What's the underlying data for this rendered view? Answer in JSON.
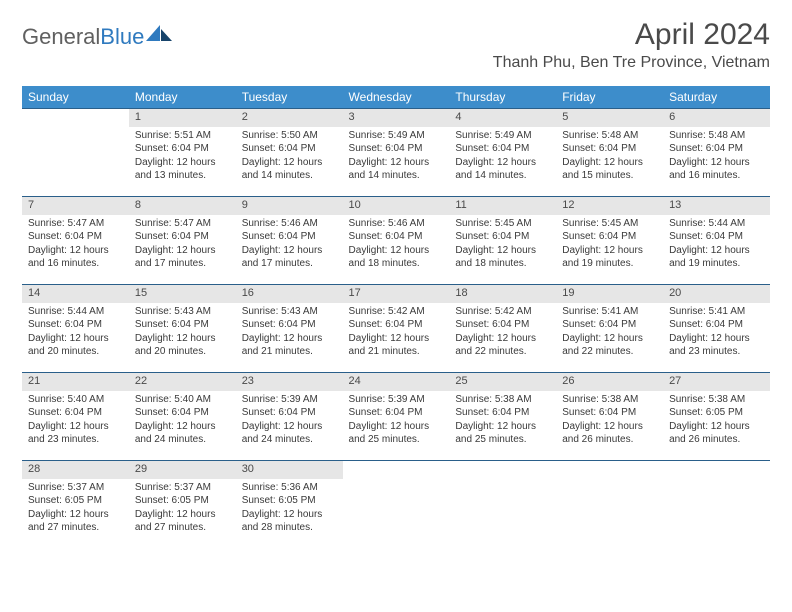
{
  "logo": {
    "text1": "General",
    "text2": "Blue"
  },
  "title": "April 2024",
  "location": "Thanh Phu, Ben Tre Province, Vietnam",
  "colors": {
    "header_bg": "#3d8dcb",
    "header_text": "#ffffff",
    "daynum_bg": "#e6e6e6",
    "row_divider": "#2a5f8a",
    "body_text": "#3a3a3a",
    "title_text": "#4a4a4a",
    "logo_gray": "#606060",
    "logo_blue": "#2f7abf"
  },
  "typography": {
    "title_fontsize": 30,
    "location_fontsize": 16,
    "dayheader_fontsize": 12,
    "daynum_fontsize": 11,
    "cell_fontsize": 10
  },
  "day_headers": [
    "Sunday",
    "Monday",
    "Tuesday",
    "Wednesday",
    "Thursday",
    "Friday",
    "Saturday"
  ],
  "weeks": [
    [
      null,
      {
        "n": "1",
        "sr": "Sunrise: 5:51 AM",
        "ss": "Sunset: 6:04 PM",
        "d1": "Daylight: 12 hours",
        "d2": "and 13 minutes."
      },
      {
        "n": "2",
        "sr": "Sunrise: 5:50 AM",
        "ss": "Sunset: 6:04 PM",
        "d1": "Daylight: 12 hours",
        "d2": "and 14 minutes."
      },
      {
        "n": "3",
        "sr": "Sunrise: 5:49 AM",
        "ss": "Sunset: 6:04 PM",
        "d1": "Daylight: 12 hours",
        "d2": "and 14 minutes."
      },
      {
        "n": "4",
        "sr": "Sunrise: 5:49 AM",
        "ss": "Sunset: 6:04 PM",
        "d1": "Daylight: 12 hours",
        "d2": "and 14 minutes."
      },
      {
        "n": "5",
        "sr": "Sunrise: 5:48 AM",
        "ss": "Sunset: 6:04 PM",
        "d1": "Daylight: 12 hours",
        "d2": "and 15 minutes."
      },
      {
        "n": "6",
        "sr": "Sunrise: 5:48 AM",
        "ss": "Sunset: 6:04 PM",
        "d1": "Daylight: 12 hours",
        "d2": "and 16 minutes."
      }
    ],
    [
      {
        "n": "7",
        "sr": "Sunrise: 5:47 AM",
        "ss": "Sunset: 6:04 PM",
        "d1": "Daylight: 12 hours",
        "d2": "and 16 minutes."
      },
      {
        "n": "8",
        "sr": "Sunrise: 5:47 AM",
        "ss": "Sunset: 6:04 PM",
        "d1": "Daylight: 12 hours",
        "d2": "and 17 minutes."
      },
      {
        "n": "9",
        "sr": "Sunrise: 5:46 AM",
        "ss": "Sunset: 6:04 PM",
        "d1": "Daylight: 12 hours",
        "d2": "and 17 minutes."
      },
      {
        "n": "10",
        "sr": "Sunrise: 5:46 AM",
        "ss": "Sunset: 6:04 PM",
        "d1": "Daylight: 12 hours",
        "d2": "and 18 minutes."
      },
      {
        "n": "11",
        "sr": "Sunrise: 5:45 AM",
        "ss": "Sunset: 6:04 PM",
        "d1": "Daylight: 12 hours",
        "d2": "and 18 minutes."
      },
      {
        "n": "12",
        "sr": "Sunrise: 5:45 AM",
        "ss": "Sunset: 6:04 PM",
        "d1": "Daylight: 12 hours",
        "d2": "and 19 minutes."
      },
      {
        "n": "13",
        "sr": "Sunrise: 5:44 AM",
        "ss": "Sunset: 6:04 PM",
        "d1": "Daylight: 12 hours",
        "d2": "and 19 minutes."
      }
    ],
    [
      {
        "n": "14",
        "sr": "Sunrise: 5:44 AM",
        "ss": "Sunset: 6:04 PM",
        "d1": "Daylight: 12 hours",
        "d2": "and 20 minutes."
      },
      {
        "n": "15",
        "sr": "Sunrise: 5:43 AM",
        "ss": "Sunset: 6:04 PM",
        "d1": "Daylight: 12 hours",
        "d2": "and 20 minutes."
      },
      {
        "n": "16",
        "sr": "Sunrise: 5:43 AM",
        "ss": "Sunset: 6:04 PM",
        "d1": "Daylight: 12 hours",
        "d2": "and 21 minutes."
      },
      {
        "n": "17",
        "sr": "Sunrise: 5:42 AM",
        "ss": "Sunset: 6:04 PM",
        "d1": "Daylight: 12 hours",
        "d2": "and 21 minutes."
      },
      {
        "n": "18",
        "sr": "Sunrise: 5:42 AM",
        "ss": "Sunset: 6:04 PM",
        "d1": "Daylight: 12 hours",
        "d2": "and 22 minutes."
      },
      {
        "n": "19",
        "sr": "Sunrise: 5:41 AM",
        "ss": "Sunset: 6:04 PM",
        "d1": "Daylight: 12 hours",
        "d2": "and 22 minutes."
      },
      {
        "n": "20",
        "sr": "Sunrise: 5:41 AM",
        "ss": "Sunset: 6:04 PM",
        "d1": "Daylight: 12 hours",
        "d2": "and 23 minutes."
      }
    ],
    [
      {
        "n": "21",
        "sr": "Sunrise: 5:40 AM",
        "ss": "Sunset: 6:04 PM",
        "d1": "Daylight: 12 hours",
        "d2": "and 23 minutes."
      },
      {
        "n": "22",
        "sr": "Sunrise: 5:40 AM",
        "ss": "Sunset: 6:04 PM",
        "d1": "Daylight: 12 hours",
        "d2": "and 24 minutes."
      },
      {
        "n": "23",
        "sr": "Sunrise: 5:39 AM",
        "ss": "Sunset: 6:04 PM",
        "d1": "Daylight: 12 hours",
        "d2": "and 24 minutes."
      },
      {
        "n": "24",
        "sr": "Sunrise: 5:39 AM",
        "ss": "Sunset: 6:04 PM",
        "d1": "Daylight: 12 hours",
        "d2": "and 25 minutes."
      },
      {
        "n": "25",
        "sr": "Sunrise: 5:38 AM",
        "ss": "Sunset: 6:04 PM",
        "d1": "Daylight: 12 hours",
        "d2": "and 25 minutes."
      },
      {
        "n": "26",
        "sr": "Sunrise: 5:38 AM",
        "ss": "Sunset: 6:04 PM",
        "d1": "Daylight: 12 hours",
        "d2": "and 26 minutes."
      },
      {
        "n": "27",
        "sr": "Sunrise: 5:38 AM",
        "ss": "Sunset: 6:05 PM",
        "d1": "Daylight: 12 hours",
        "d2": "and 26 minutes."
      }
    ],
    [
      {
        "n": "28",
        "sr": "Sunrise: 5:37 AM",
        "ss": "Sunset: 6:05 PM",
        "d1": "Daylight: 12 hours",
        "d2": "and 27 minutes."
      },
      {
        "n": "29",
        "sr": "Sunrise: 5:37 AM",
        "ss": "Sunset: 6:05 PM",
        "d1": "Daylight: 12 hours",
        "d2": "and 27 minutes."
      },
      {
        "n": "30",
        "sr": "Sunrise: 5:36 AM",
        "ss": "Sunset: 6:05 PM",
        "d1": "Daylight: 12 hours",
        "d2": "and 28 minutes."
      },
      null,
      null,
      null,
      null
    ]
  ]
}
